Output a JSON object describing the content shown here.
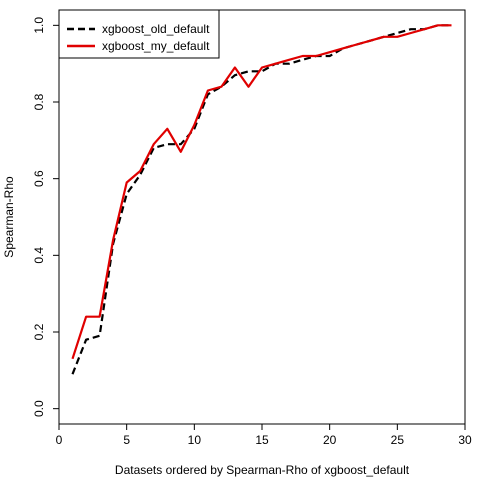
{
  "chart_data": {
    "type": "line",
    "title": "",
    "xlabel": "Datasets ordered by Spearman-Rho of xgboost_default",
    "ylabel": "Spearman-Rho",
    "xlim": [
      0,
      30
    ],
    "ylim": [
      -0.04,
      1.04
    ],
    "x_ticks": [
      "0",
      "5",
      "10",
      "15",
      "20",
      "25",
      "30"
    ],
    "y_ticks": [
      "0.0",
      "0.2",
      "0.4",
      "0.6",
      "0.8",
      "1.0"
    ],
    "grid": false,
    "legend_position": "top-left",
    "series": [
      {
        "name": "xgboost_old_default",
        "color": "#000000",
        "style": "dashed",
        "x": [
          1,
          2,
          3,
          4,
          5,
          6,
          7,
          8,
          9,
          10,
          11,
          12,
          13,
          14,
          15,
          16,
          17,
          18,
          19,
          20,
          21,
          22,
          23,
          24,
          25,
          26,
          27,
          28,
          29
        ],
        "values": [
          0.09,
          0.18,
          0.19,
          0.43,
          0.56,
          0.61,
          0.68,
          0.69,
          0.69,
          0.73,
          0.82,
          0.84,
          0.87,
          0.88,
          0.88,
          0.9,
          0.9,
          0.91,
          0.92,
          0.92,
          0.94,
          0.95,
          0.96,
          0.97,
          0.98,
          0.99,
          0.99,
          1.0,
          1.0
        ]
      },
      {
        "name": "xgboost_my_default",
        "color": "#e00000",
        "style": "solid",
        "x": [
          1,
          2,
          3,
          4,
          5,
          6,
          7,
          8,
          9,
          10,
          11,
          12,
          13,
          14,
          15,
          16,
          17,
          18,
          19,
          20,
          21,
          22,
          23,
          24,
          25,
          26,
          27,
          28,
          29
        ],
        "values": [
          0.13,
          0.24,
          0.24,
          0.44,
          0.59,
          0.62,
          0.69,
          0.73,
          0.67,
          0.74,
          0.83,
          0.84,
          0.89,
          0.84,
          0.89,
          0.9,
          0.91,
          0.92,
          0.92,
          0.93,
          0.94,
          0.95,
          0.96,
          0.97,
          0.97,
          0.98,
          0.99,
          1.0,
          1.0
        ]
      }
    ]
  }
}
